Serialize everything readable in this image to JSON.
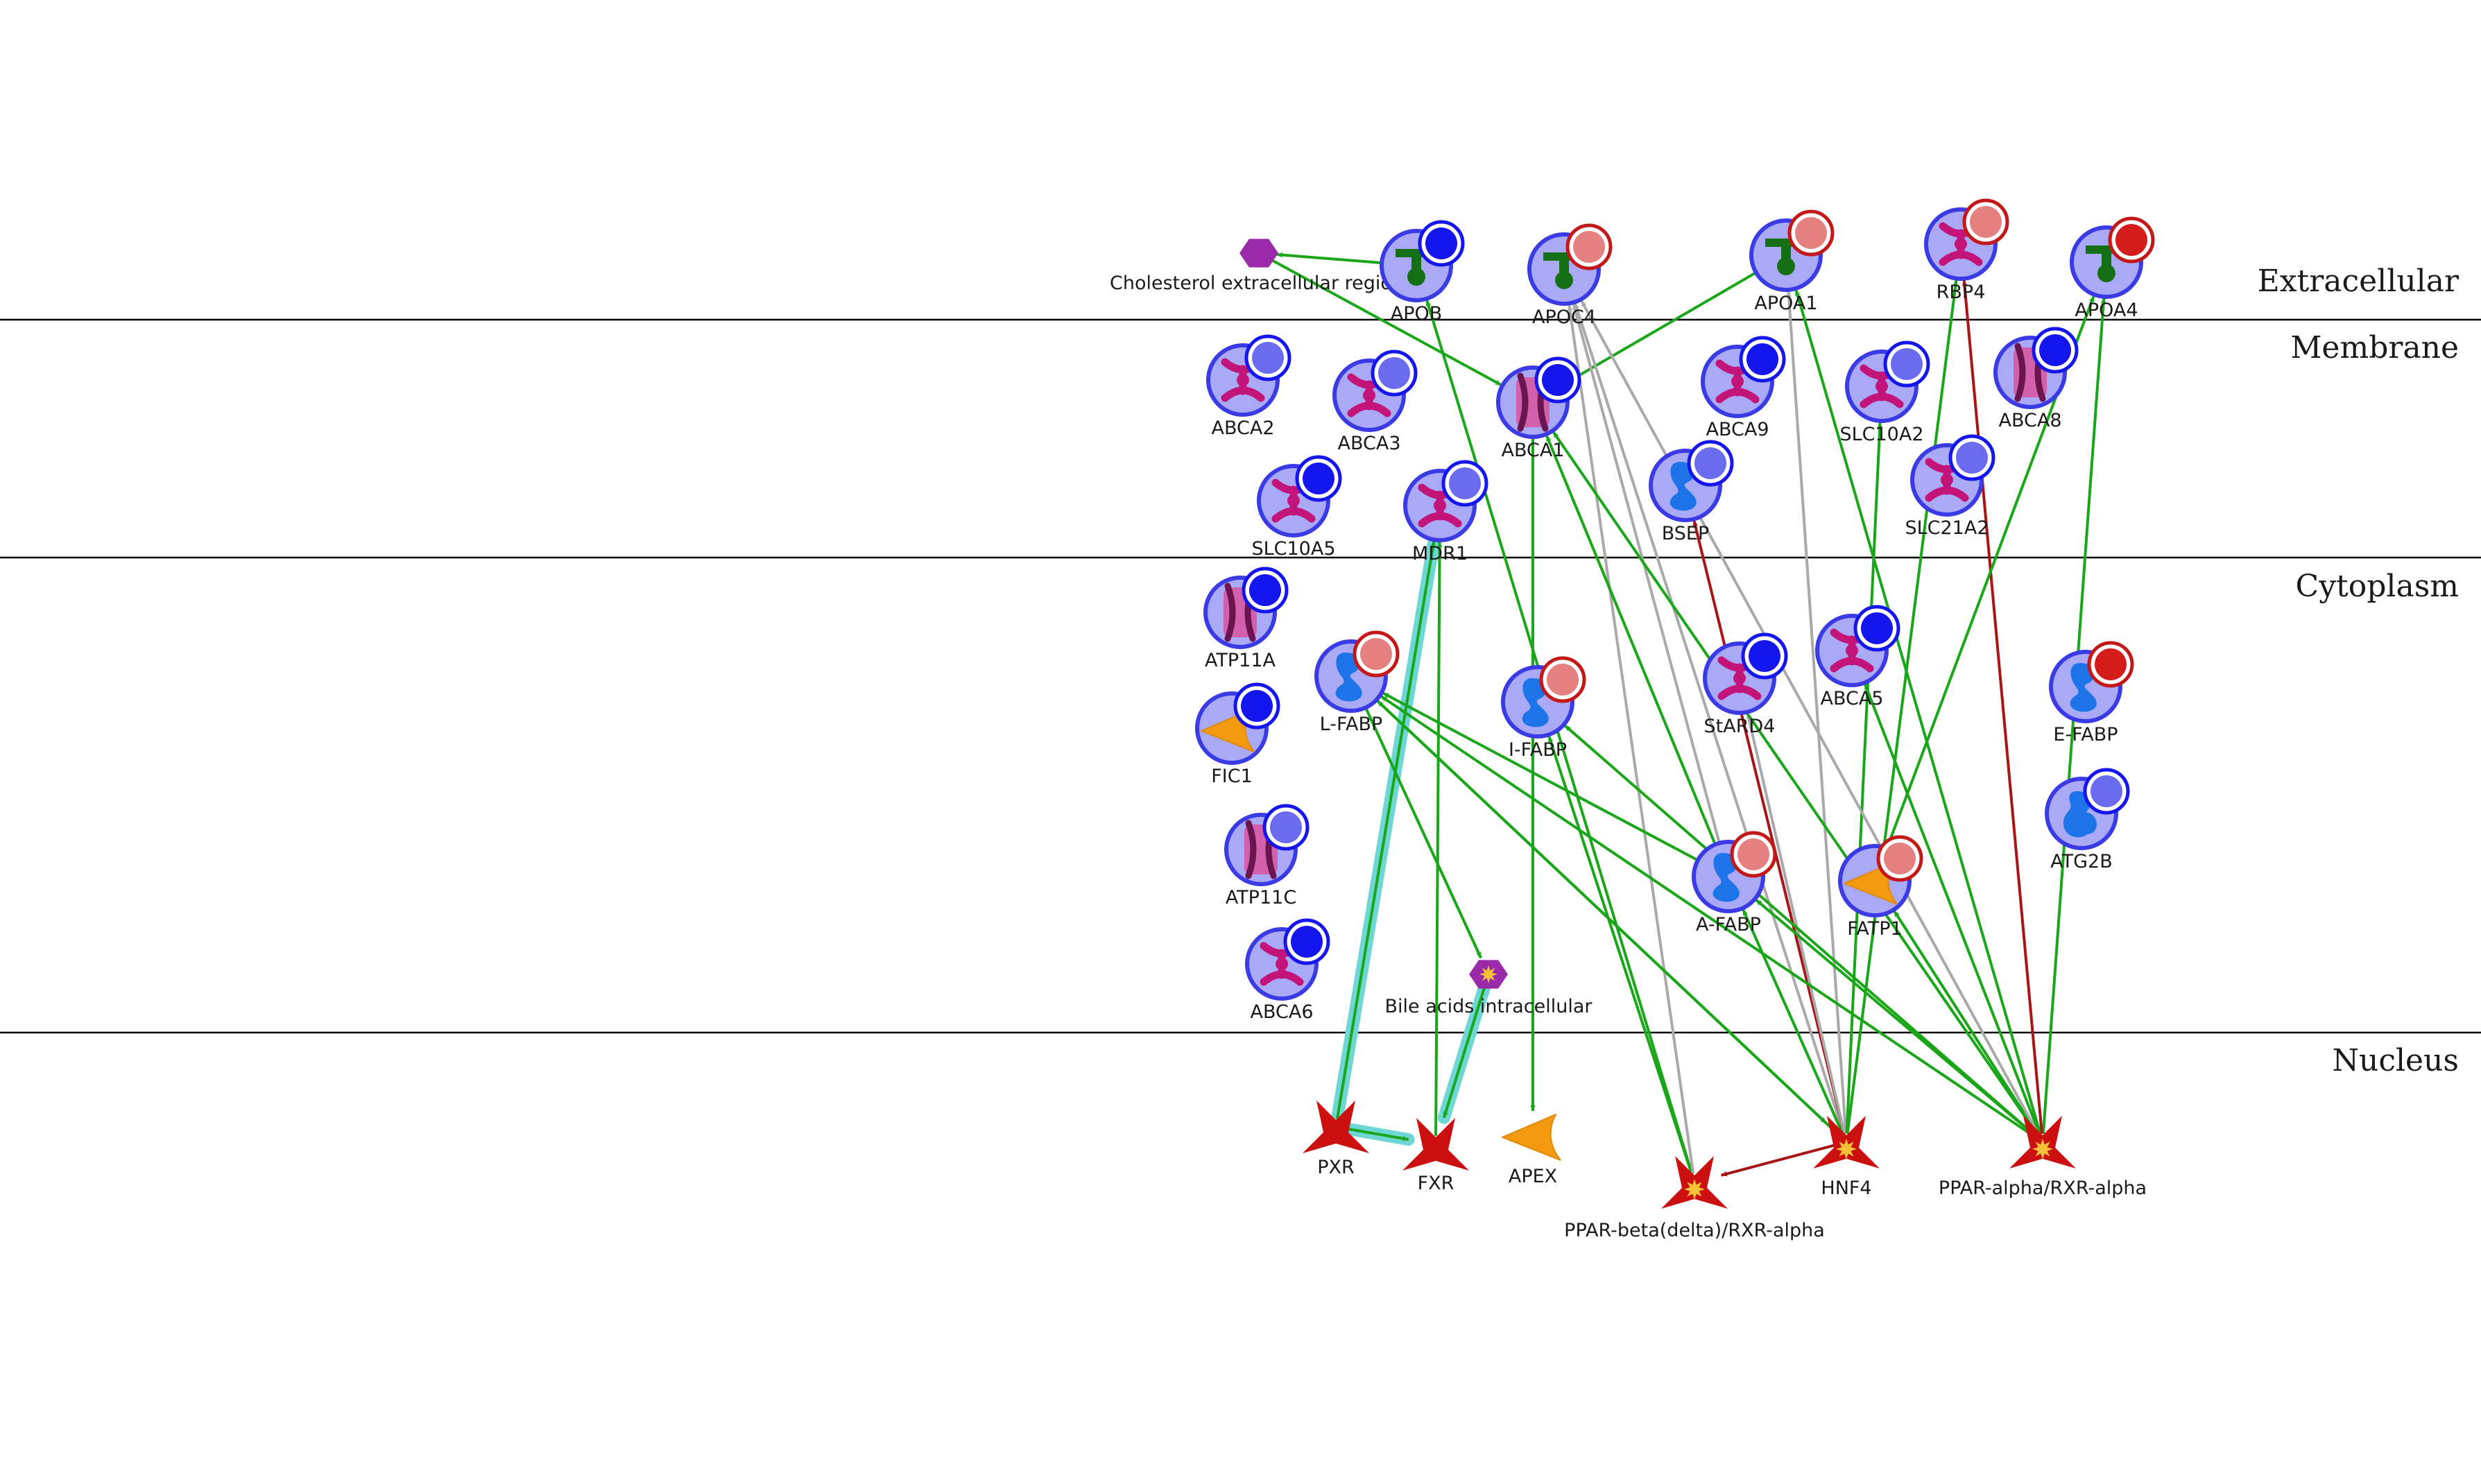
{
  "colors": {
    "activation": "#19a619",
    "inhibition": "#a81515",
    "unspecified": "#a9a9a9",
    "highlight": "#6fd6d6",
    "protein_fill": "#a9a9f5",
    "protein_stroke": "#3b3be6",
    "badge_blue": "#1515ee",
    "badge_light_blue": "#6b6bf0",
    "badge_light_red": "#e58080",
    "badge_red": "#d41c1c",
    "ligand": "#156f15",
    "transporter": "#c3147a",
    "binding_protein": "#1c74e8",
    "enzyme": "#f39a10",
    "tf": "#cc1010",
    "compound": "#9a2aa9"
  },
  "compartments": [
    {
      "id": "extracellular",
      "label": "Extracellular"
    },
    {
      "id": "membrane",
      "label": "Membrane"
    },
    {
      "id": "cytoplasm",
      "label": "Cytoplasm"
    },
    {
      "id": "nucleus",
      "label": "Nucleus"
    }
  ],
  "nodes": [
    {
      "id": "chol",
      "label": "Cholesterol extracellular region",
      "kind": "compound",
      "icon": "hexagon-compound-icon"
    },
    {
      "id": "APOB",
      "label": "APOB",
      "kind": "ligand",
      "badge": "blue",
      "icon": "ligand-icon"
    },
    {
      "id": "APOC4",
      "label": "APOC4",
      "kind": "ligand",
      "badge": "light_red",
      "icon": "ligand-icon"
    },
    {
      "id": "APOA1",
      "label": "APOA1",
      "kind": "ligand",
      "badge": "light_red",
      "icon": "ligand-icon"
    },
    {
      "id": "RBP4",
      "label": "RBP4",
      "kind": "transporter",
      "badge": "light_red",
      "icon": "transporter-icon"
    },
    {
      "id": "APOA4",
      "label": "APOA4",
      "kind": "ligand",
      "badge": "red",
      "icon": "ligand-icon"
    },
    {
      "id": "ABCA2",
      "label": "ABCA2",
      "kind": "transporter",
      "badge": "light_blue",
      "icon": "transporter-icon"
    },
    {
      "id": "ABCA3",
      "label": "ABCA3",
      "kind": "transporter",
      "badge": "light_blue",
      "icon": "transporter-icon"
    },
    {
      "id": "ABCA1",
      "label": "ABCA1",
      "kind": "channel",
      "badge": "blue",
      "icon": "channel-icon"
    },
    {
      "id": "ABCA9",
      "label": "ABCA9",
      "kind": "transporter",
      "badge": "blue",
      "icon": "transporter-icon"
    },
    {
      "id": "SLC10A2",
      "label": "SLC10A2",
      "kind": "transporter",
      "badge": "light_blue",
      "icon": "transporter-icon"
    },
    {
      "id": "ABCA8",
      "label": "ABCA8",
      "kind": "channel",
      "badge": "blue",
      "icon": "channel-icon"
    },
    {
      "id": "SLC10A5",
      "label": "SLC10A5",
      "kind": "transporter",
      "badge": "blue",
      "icon": "transporter-icon"
    },
    {
      "id": "MDR1",
      "label": "MDR1",
      "kind": "transporter",
      "badge": "light_blue",
      "icon": "transporter-icon"
    },
    {
      "id": "BSEP",
      "label": "BSEP",
      "kind": "binding",
      "badge": "light_blue",
      "icon": "binding-protein-icon"
    },
    {
      "id": "SLC21A2",
      "label": "SLC21A2",
      "kind": "transporter",
      "badge": "light_blue",
      "icon": "transporter-icon"
    },
    {
      "id": "ATP11A",
      "label": "ATP11A",
      "kind": "channel",
      "badge": "blue",
      "icon": "channel-icon"
    },
    {
      "id": "L-FABP",
      "label": "L-FABP",
      "kind": "binding",
      "badge": "light_red",
      "icon": "binding-protein-icon"
    },
    {
      "id": "I-FABP",
      "label": "I-FABP",
      "kind": "binding",
      "badge": "light_red",
      "icon": "binding-protein-icon"
    },
    {
      "id": "StARD4",
      "label": "StARD4",
      "kind": "transporter",
      "badge": "blue",
      "icon": "transporter-icon"
    },
    {
      "id": "ABCA5",
      "label": "ABCA5",
      "kind": "transporter",
      "badge": "blue",
      "icon": "transporter-icon"
    },
    {
      "id": "E-FABP",
      "label": "E-FABP",
      "kind": "binding",
      "badge": "red",
      "icon": "binding-protein-icon"
    },
    {
      "id": "FIC1",
      "label": "FIC1",
      "kind": "enzyme",
      "badge": "blue",
      "icon": "enzyme-icon"
    },
    {
      "id": "ATP11C",
      "label": "ATP11C",
      "kind": "channel",
      "badge": "light_blue",
      "icon": "channel-icon"
    },
    {
      "id": "A-FABP",
      "label": "A-FABP",
      "kind": "binding",
      "badge": "light_red",
      "icon": "binding-protein-icon"
    },
    {
      "id": "FATP1",
      "label": "FATP1",
      "kind": "enzyme",
      "badge": "light_red",
      "icon": "enzyme-icon"
    },
    {
      "id": "ATG2B",
      "label": "ATG2B",
      "kind": "binding2",
      "badge": "light_blue",
      "icon": "binding-protein-icon"
    },
    {
      "id": "ABCA6",
      "label": "ABCA6",
      "kind": "transporter",
      "badge": "blue",
      "icon": "transporter-icon"
    },
    {
      "id": "bile",
      "label": "Bile acids intracellular",
      "kind": "compound2",
      "icon": "hexagon-compound-icon"
    },
    {
      "id": "PXR",
      "label": "PXR",
      "kind": "tf",
      "icon": "transcription-factor-icon"
    },
    {
      "id": "FXR",
      "label": "FXR",
      "kind": "tf",
      "icon": "transcription-factor-icon"
    },
    {
      "id": "APEX",
      "label": "APEX",
      "kind": "enzyme_bare",
      "icon": "enzyme-icon"
    },
    {
      "id": "PPARd",
      "label": "PPAR-beta(delta)/RXR-alpha",
      "kind": "tf_star",
      "icon": "transcription-factor-icon"
    },
    {
      "id": "HNF4",
      "label": "HNF4",
      "kind": "tf_star",
      "icon": "transcription-factor-icon"
    },
    {
      "id": "PPARa",
      "label": "PPAR-alpha/RXR-alpha",
      "kind": "tf_star",
      "icon": "transcription-factor-icon"
    }
  ],
  "edges": [
    {
      "from": "APOB",
      "to": "chol",
      "type": "activation"
    },
    {
      "from": "chol",
      "to": "ABCA1",
      "type": "activation"
    },
    {
      "from": "APOA1",
      "to": "ABCA1",
      "type": "activation"
    },
    {
      "from": "ABCA1",
      "to": "APEX",
      "type": "activation"
    },
    {
      "from": "PXR",
      "to": "MDR1",
      "type": "activation",
      "highlight": true
    },
    {
      "from": "PXR",
      "to": "FXR",
      "type": "activation",
      "highlight": true
    },
    {
      "from": "bile",
      "to": "FXR",
      "type": "activation",
      "highlight": true
    },
    {
      "from": "FXR",
      "to": "MDR1",
      "type": "activation"
    },
    {
      "from": "L-FABP",
      "to": "bile",
      "type": "activation"
    },
    {
      "from": "PPARd",
      "to": "APOB",
      "type": "activation"
    },
    {
      "from": "PPARd",
      "to": "I-FABP",
      "type": "activation"
    },
    {
      "from": "PPARd",
      "to": "APOC4",
      "type": "unspecified"
    },
    {
      "from": "A-FABP",
      "to": "L-FABP",
      "type": "activation"
    },
    {
      "from": "A-FABP",
      "to": "ABCA1",
      "type": "activation"
    },
    {
      "from": "A-FABP",
      "to": "APOC4",
      "type": "unspecified"
    },
    {
      "from": "HNF4",
      "to": "L-FABP",
      "type": "activation"
    },
    {
      "from": "HNF4",
      "to": "APOC4",
      "type": "unspecified"
    },
    {
      "from": "HNF4",
      "to": "APOA1",
      "type": "unspecified"
    },
    {
      "from": "HNF4",
      "to": "BSEP",
      "type": "inhibition"
    },
    {
      "from": "HNF4",
      "to": "SLC10A2",
      "type": "activation"
    },
    {
      "from": "HNF4",
      "to": "RBP4",
      "type": "activation"
    },
    {
      "from": "HNF4",
      "to": "StARD4",
      "type": "unspecified"
    },
    {
      "from": "HNF4",
      "to": "A-FABP",
      "type": "activation"
    },
    {
      "from": "HNF4",
      "to": "PPARd",
      "type": "inhibition"
    },
    {
      "from": "PPARa",
      "to": "L-FABP",
      "type": "activation"
    },
    {
      "from": "PPARa",
      "to": "I-FABP",
      "type": "activation"
    },
    {
      "from": "PPARa",
      "to": "APOA1",
      "type": "activation"
    },
    {
      "from": "PPARa",
      "to": "APOA4",
      "type": "activation"
    },
    {
      "from": "PPARa",
      "to": "RBP4",
      "type": "inhibition"
    },
    {
      "from": "PPARa",
      "to": "ABCA5",
      "type": "activation"
    },
    {
      "from": "PPARa",
      "to": "FATP1",
      "type": "activation"
    },
    {
      "from": "PPARa",
      "to": "A-FABP",
      "type": "activation"
    },
    {
      "from": "PPARa",
      "to": "APOC4",
      "type": "unspecified"
    },
    {
      "from": "PPARa",
      "to": "ABCA1",
      "type": "activation"
    },
    {
      "from": "FATP1",
      "to": "APOA4",
      "type": "activation"
    },
    {
      "from": "L-FABP",
      "to": "HNF4",
      "type": "activation"
    }
  ]
}
